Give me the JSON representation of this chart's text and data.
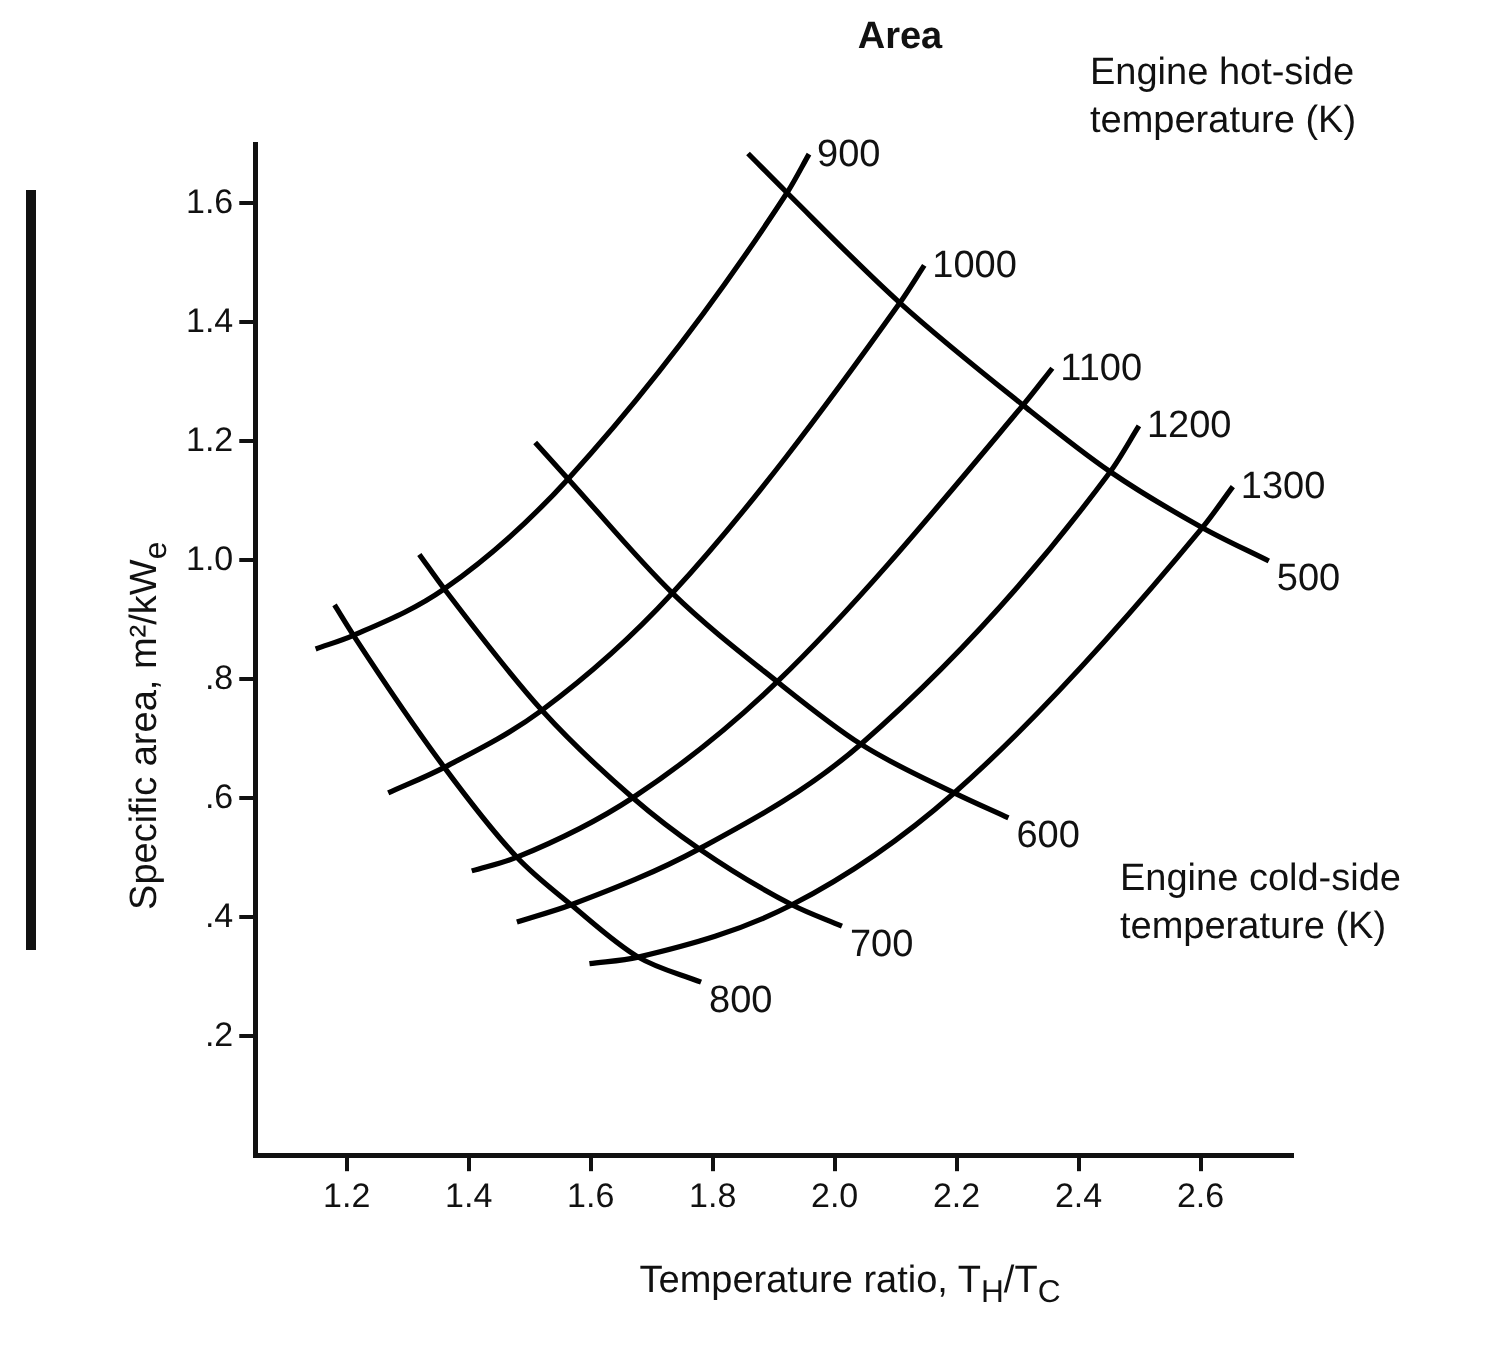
{
  "chart_data": {
    "type": "line",
    "title": "Area",
    "xlabel": "Temperature ratio, T$_{H}$/T$_{C}$",
    "ylabel": "Specific area, m²/kW$_{e}$",
    "annotations": [
      "Engine hot-side temperature (K)",
      "Engine cold-side temperature (K)"
    ],
    "xlim": [
      1.05,
      2.75
    ],
    "ylim": [
      0,
      1.7
    ],
    "xticks": [
      1.2,
      1.4,
      1.6,
      1.8,
      {
        "value": 2,
        "label": "2.0"
      },
      2.2,
      2.4,
      2.6
    ],
    "yticks": [
      {
        "value": 0.2,
        "label": ".2"
      },
      {
        "value": 0.4,
        "label": ".4"
      },
      {
        "value": 0.6,
        "label": ".6"
      },
      {
        "value": 0.8,
        "label": ".8"
      },
      {
        "value": 1,
        "label": "1.0"
      },
      1.2,
      1.4,
      1.6
    ],
    "grid": false,
    "legend": false,
    "marker": "none",
    "line_style": "solid",
    "series": [
      {
        "name": "900",
        "color": "#000000",
        "x": [
          1.149,
          1.211,
          1.36,
          1.563,
          1.922,
          1.958
        ],
        "values": [
          0.851,
          0.874,
          0.952,
          1.137,
          1.618,
          1.683
        ]
      },
      {
        "name": "1000",
        "color": "#000000",
        "x": [
          1.268,
          1.36,
          1.52,
          1.734,
          2.107,
          2.147
        ],
        "values": [
          0.609,
          0.652,
          0.748,
          0.945,
          1.433,
          1.496
        ]
      },
      {
        "name": "1100",
        "color": "#000000",
        "x": [
          1.405,
          1.479,
          1.669,
          1.906,
          2.309,
          2.357
        ],
        "values": [
          0.478,
          0.501,
          0.601,
          0.796,
          1.261,
          1.323
        ]
      },
      {
        "name": "1200",
        "color": "#000000",
        "x": [
          1.479,
          1.568,
          1.778,
          2.043,
          2.452,
          2.499
        ],
        "values": [
          0.392,
          0.421,
          0.515,
          0.691,
          1.149,
          1.226
        ]
      },
      {
        "name": "1300",
        "color": "#000000",
        "x": [
          1.598,
          1.678,
          1.93,
          2.196,
          2.603,
          2.653
        ],
        "values": [
          0.322,
          0.333,
          0.421,
          0.609,
          1.055,
          1.124
        ]
      },
      {
        "name": "500",
        "color": "#000000",
        "x": [
          1.858,
          1.922,
          2.107,
          2.309,
          2.452,
          2.603,
          2.712
        ],
        "values": [
          1.684,
          1.618,
          1.433,
          1.261,
          1.149,
          1.055,
          0.999
        ]
      },
      {
        "name": "600",
        "color": "#000000",
        "x": [
          1.509,
          1.563,
          1.734,
          1.906,
          2.043,
          2.196,
          2.285
        ],
        "values": [
          1.198,
          1.137,
          0.945,
          0.796,
          0.691,
          0.609,
          0.567
        ]
      },
      {
        "name": "700",
        "color": "#000000",
        "x": [
          1.319,
          1.36,
          1.52,
          1.669,
          1.778,
          1.93,
          2.012
        ],
        "values": [
          1.01,
          0.952,
          0.748,
          0.601,
          0.515,
          0.421,
          0.385
        ]
      },
      {
        "name": "800",
        "color": "#000000",
        "x": [
          1.18,
          1.211,
          1.36,
          1.479,
          1.568,
          1.678,
          1.781
        ],
        "values": [
          0.925,
          0.874,
          0.652,
          0.501,
          0.421,
          0.333,
          0.291
        ]
      }
    ]
  }
}
